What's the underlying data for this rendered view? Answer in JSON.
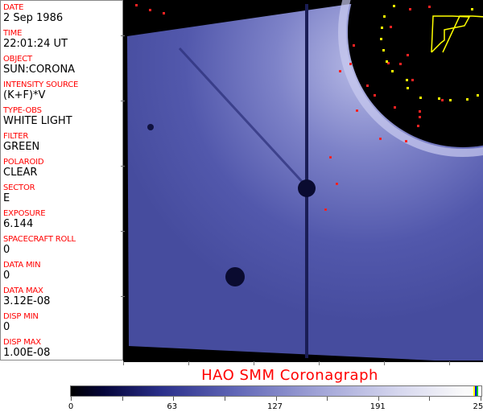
{
  "info_panel": {
    "fields": [
      {
        "label": "DATE",
        "value": "2 Sep 1986"
      },
      {
        "label": "TIME",
        "value": "22:01:24 UT"
      },
      {
        "label": "OBJECT",
        "value": "SUN:CORONA"
      },
      {
        "label": "INTENSITY SOURCE",
        "value": "(K+F)*V"
      },
      {
        "label": "TYPE-OBS",
        "value": "WHITE LIGHT"
      },
      {
        "label": "FILTER",
        "value": "GREEN"
      },
      {
        "label": "POLAROID",
        "value": "CLEAR"
      },
      {
        "label": "SECTOR",
        "value": "E"
      },
      {
        "label": "EXPOSURE",
        "value": "6.144"
      },
      {
        "label": "SPACECRAFT ROLL",
        "value": "0"
      },
      {
        "label": "DATA MIN",
        "value": "0"
      },
      {
        "label": "DATA MAX",
        "value": "3.12E-08"
      },
      {
        "label": "DISP MIN",
        "value": "0"
      },
      {
        "label": "DISP MAX",
        "value": "1.00E-08"
      }
    ]
  },
  "title": "HAO  SMM Coronagraph",
  "colorbar": {
    "tick_labels": [
      "0",
      "63",
      "127",
      "191",
      "255"
    ],
    "range": [
      0,
      255
    ],
    "colors": {
      "low": "#000000",
      "mid": "#6066b6",
      "high": "#fafafa",
      "label": "#ff0000"
    }
  }
}
